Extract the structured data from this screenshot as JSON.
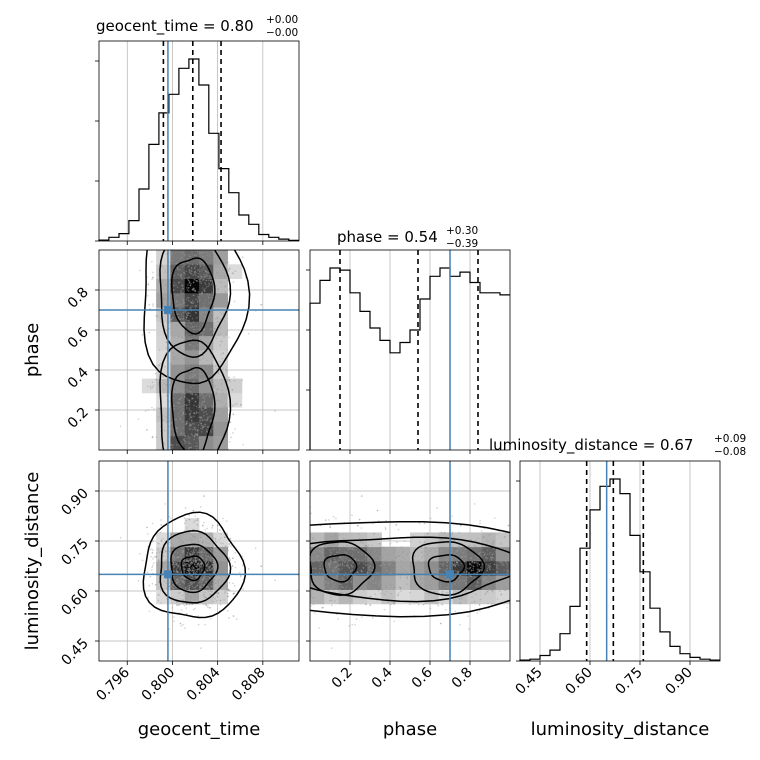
{
  "colors": {
    "truth": "#4682b4",
    "histogram": "#000000",
    "quantile": "#000000",
    "contour": "#000000",
    "density": "#000000",
    "scatter": "#9a9a9a",
    "grid": "#b0b0b0"
  },
  "chart_data": {
    "type": "corner",
    "parameters": [
      "geocent_time",
      "phase",
      "luminosity_distance"
    ],
    "axis_labels": {
      "geocent_time": "geocent_time",
      "phase": "phase",
      "luminosity_distance": "luminosity_distance"
    },
    "ranges": {
      "geocent_time": [
        0.7935,
        0.8112
      ],
      "phase": [
        0.0,
        1.0
      ],
      "luminosity_distance": [
        0.39,
        0.99
      ]
    },
    "ticks": {
      "geocent_time": {
        "values": [
          0.796,
          0.8,
          0.804,
          0.808
        ],
        "labels": [
          "0.796",
          "0.800",
          "0.804",
          "0.808"
        ]
      },
      "phase": {
        "values": [
          0.2,
          0.4,
          0.6,
          0.8
        ],
        "labels": [
          "0.2",
          "0.4",
          "0.6",
          "0.8"
        ]
      },
      "luminosity_distance": {
        "values": [
          0.45,
          0.6,
          0.75,
          0.9
        ],
        "labels": [
          "0.45",
          "0.60",
          "0.75",
          "0.90"
        ]
      }
    },
    "truths": {
      "geocent_time": 0.7996,
      "phase": 0.7,
      "luminosity_distance": 0.65
    },
    "quantiles": {
      "geocent_time": [
        0.7992,
        0.8018,
        0.8043
      ],
      "phase": [
        0.15,
        0.54,
        0.84
      ],
      "luminosity_distance": [
        0.59,
        0.67,
        0.76
      ]
    },
    "titles": {
      "geocent_time": {
        "main": "geocent_time = 0.80",
        "sup": "+0.00",
        "sub": "−0.00"
      },
      "phase": {
        "main": "phase = 0.54",
        "sup": "+0.30",
        "sub": "−0.39"
      },
      "luminosity_distance": {
        "main": "luminosity_distance = 0.67",
        "sup": "+0.09",
        "sub": "−0.08"
      }
    },
    "grid": true,
    "marginals": {
      "geocent_time": {
        "bin_edges": [
          0.7935,
          0.79438,
          0.79527,
          0.79615,
          0.79704,
          0.79792,
          0.7988,
          0.79969,
          0.80057,
          0.80146,
          0.80234,
          0.80322,
          0.80411,
          0.80499,
          0.80588,
          0.80676,
          0.80764,
          0.80853,
          0.80941,
          0.8103,
          0.8112
        ],
        "counts": [
          0.5,
          2,
          4,
          11,
          28,
          52,
          69,
          79,
          93,
          98,
          84,
          58,
          39,
          26,
          14,
          9,
          3.5,
          2,
          1,
          0.3
        ]
      },
      "phase": {
        "bin_edges": [
          0,
          0.05,
          0.1,
          0.15,
          0.2,
          0.25,
          0.3,
          0.35,
          0.4,
          0.45,
          0.5,
          0.55,
          0.6,
          0.65,
          0.7,
          0.75,
          0.8,
          0.85,
          0.9,
          0.95,
          1.0
        ],
        "counts": [
          71,
          82,
          88,
          87,
          76,
          67,
          59,
          53,
          47,
          52,
          58,
          73,
          84,
          88,
          84,
          86,
          81,
          76,
          76,
          75
        ]
      },
      "luminosity_distance": {
        "bin_edges": [
          0.39,
          0.42,
          0.45,
          0.48,
          0.51,
          0.54,
          0.57,
          0.6,
          0.63,
          0.66,
          0.69,
          0.72,
          0.75,
          0.78,
          0.81,
          0.84,
          0.87,
          0.9,
          0.93,
          0.96,
          0.99
        ],
        "counts": [
          0.5,
          1,
          3,
          6,
          15,
          30,
          62,
          83,
          96,
          100,
          92,
          69,
          49,
          29,
          16,
          8,
          4,
          2,
          1,
          0.5
        ]
      }
    },
    "joint": {
      "phase_vs_geocent_time": {
        "x_mean": 0.8018,
        "x_sd": 0.0017,
        "y_modes": [
          0.78,
          0.2
        ]
      },
      "luminosity_distance_vs_geocent_time": {
        "x_mean": 0.8018,
        "x_sd": 0.0017,
        "y_mean": 0.67,
        "y_sd": 0.06
      },
      "luminosity_distance_vs_phase": {
        "x_modes": [
          0.15,
          0.68
        ],
        "y_mean": 0.67,
        "y_sd": 0.06
      }
    }
  }
}
